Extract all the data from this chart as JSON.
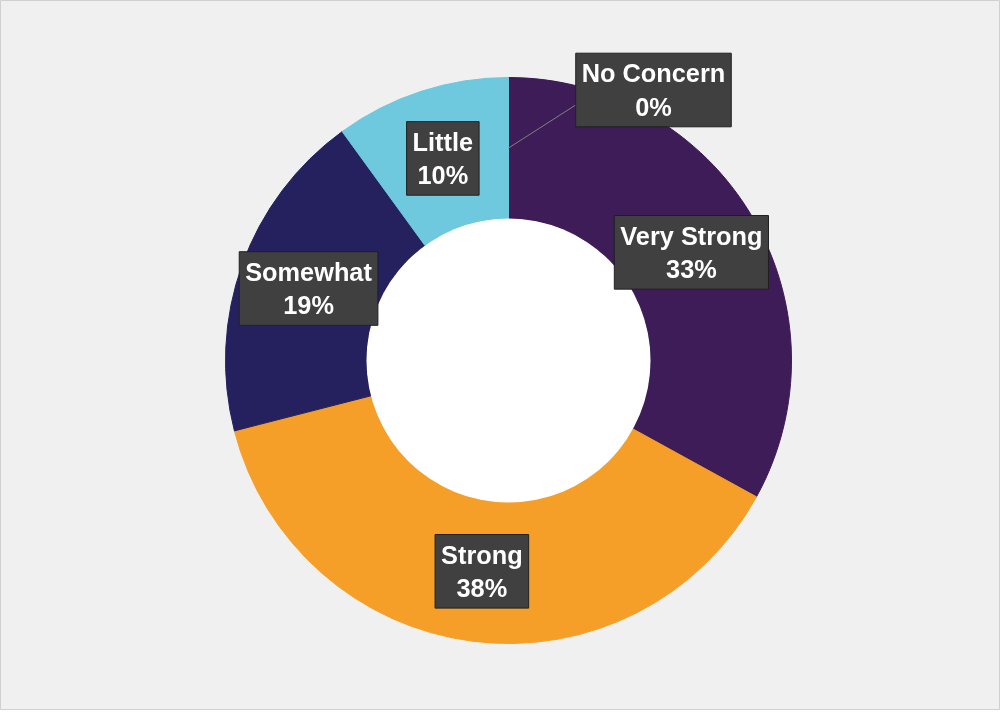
{
  "chart_data": {
    "type": "donut",
    "categories": [
      "Very Strong",
      "Strong",
      "Somewhat",
      "Little",
      "No Concern"
    ],
    "values": [
      33,
      38,
      19,
      10,
      0
    ],
    "value_labels": [
      "33%",
      "38%",
      "19%",
      "10%",
      "0%"
    ],
    "colors": [
      "#3e1c57",
      "#f59f28",
      "#25205e",
      "#6ec8de",
      "#5a2d82"
    ]
  }
}
